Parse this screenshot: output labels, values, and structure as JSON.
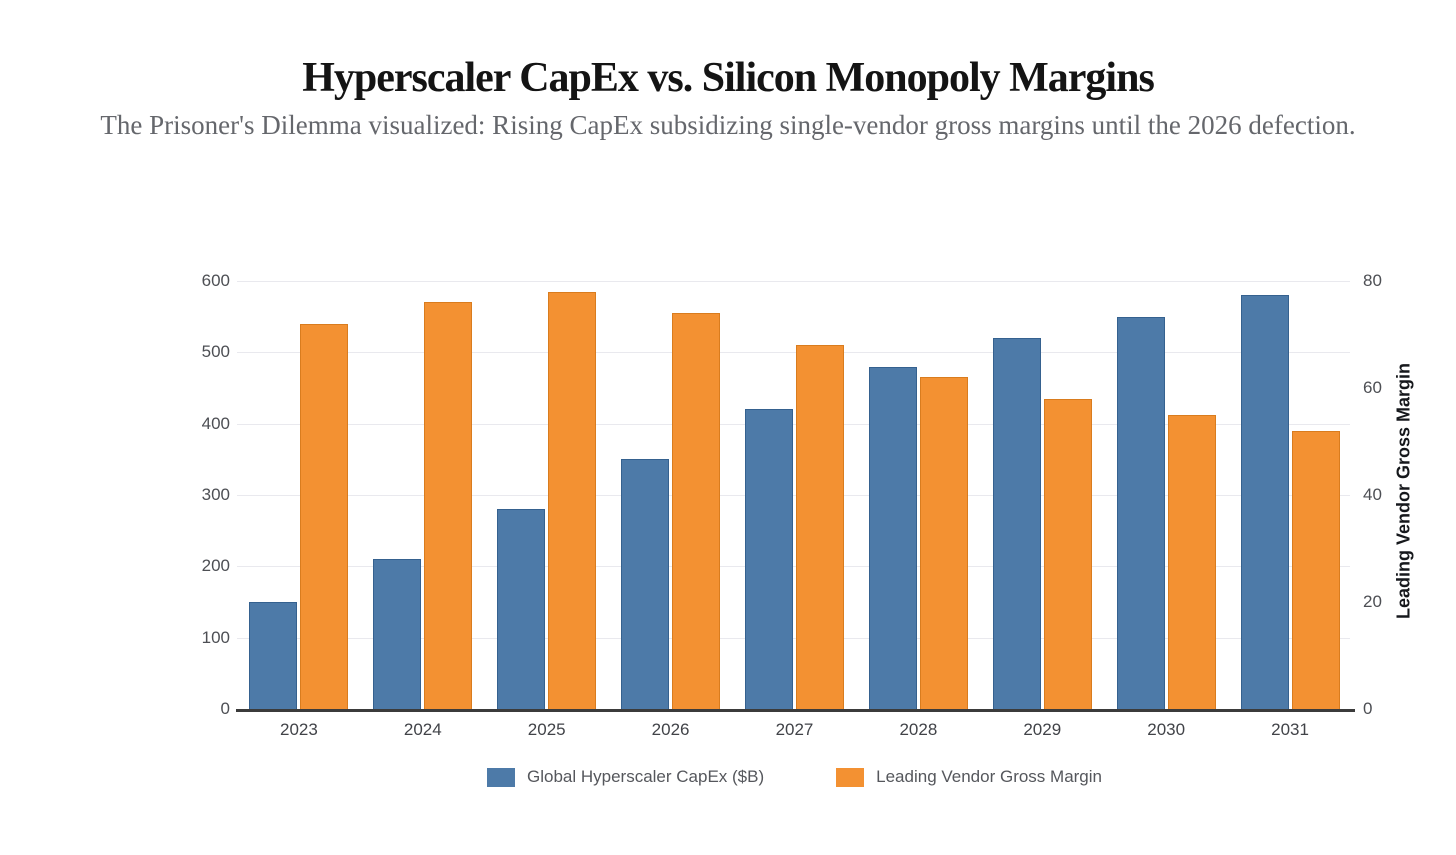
{
  "header": {
    "title": "Hyperscaler CapEx vs. Silicon Monopoly Margins",
    "subtitle": "The Prisoner's Dilemma visualized: Rising CapEx subsidizing single-vendor gross margins until the 2026 defection."
  },
  "chart_data": {
    "type": "bar",
    "title": "Hyperscaler CapEx vs. Silicon Monopoly Margins",
    "subtitle": "The Prisoner's Dilemma visualized: Rising CapEx subsidizing single-vendor gross margins until the 2026 defection.",
    "categories": [
      "2023",
      "2024",
      "2025",
      "2026",
      "2027",
      "2028",
      "2029",
      "2030",
      "2031"
    ],
    "series": [
      {
        "name": "Global Hyperscaler CapEx ($B)",
        "axis": "left",
        "color": "#4d7aa8",
        "border": "#35618f",
        "values": [
          150,
          210,
          280,
          350,
          420,
          480,
          520,
          550,
          580
        ]
      },
      {
        "name": "Leading Vendor Gross Margin",
        "axis": "right",
        "color": "#f39132",
        "border": "#d97c1e",
        "values": [
          72,
          76,
          78,
          74,
          68,
          62,
          58,
          55,
          52
        ]
      }
    ],
    "left_axis": {
      "ticks": [
        0,
        100,
        200,
        300,
        400,
        500,
        600
      ],
      "min": 0,
      "max": 600,
      "label": ""
    },
    "right_axis": {
      "ticks": [
        0,
        20,
        40,
        60,
        80
      ],
      "min": 0,
      "max": 80,
      "label": "Leading Vendor Gross Margin"
    },
    "legend": [
      "Global Hyperscaler CapEx ($B)",
      "Leading Vendor Gross Margin"
    ],
    "legend_position": "bottom",
    "grid": true,
    "colors": {
      "capex_blue": "#4d7aa8",
      "margin_orange": "#f39132",
      "gridline": "#e9e9ee",
      "axis_line": "#3b3b3b"
    }
  }
}
